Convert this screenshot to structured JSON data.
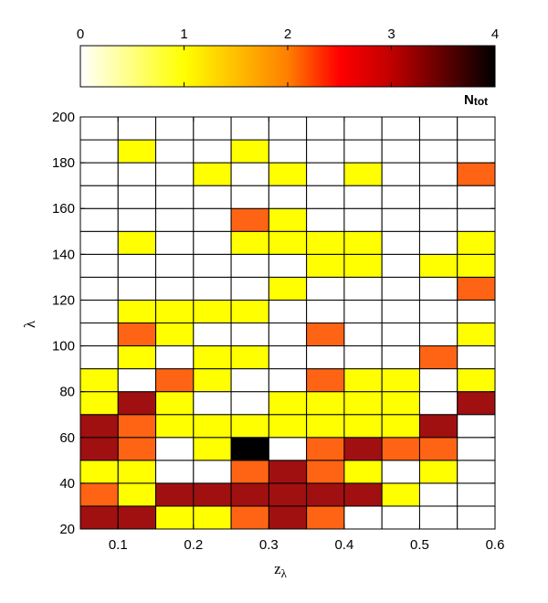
{
  "chart_data": {
    "type": "heatmap",
    "title": "",
    "xlabel_main": "z",
    "xlabel_sub": "λ",
    "ylabel": "λ",
    "x_edges": [
      0.05,
      0.1,
      0.15,
      0.2,
      0.25,
      0.3,
      0.35,
      0.4,
      0.45,
      0.5,
      0.55,
      0.6
    ],
    "y_edges": [
      20,
      30,
      40,
      50,
      60,
      70,
      80,
      90,
      100,
      110,
      120,
      130,
      140,
      150,
      160,
      170,
      180,
      190,
      200
    ],
    "xlim": [
      0.05,
      0.6
    ],
    "ylim": [
      20,
      200
    ],
    "x_ticks": [
      "0.1",
      "0.2",
      "0.3",
      "0.4",
      "0.5",
      "0.6"
    ],
    "x_tick_values": [
      0.1,
      0.2,
      0.3,
      0.4,
      0.5,
      0.6
    ],
    "y_ticks": [
      "20",
      "40",
      "60",
      "80",
      "100",
      "120",
      "140",
      "160",
      "180",
      "200"
    ],
    "y_tick_values": [
      20,
      40,
      60,
      80,
      100,
      120,
      140,
      160,
      180,
      200
    ],
    "grid": true,
    "colorbar": {
      "label_main": "N",
      "label_sub": "tot",
      "range": [
        0,
        4
      ],
      "ticks": [
        "0",
        "1",
        "2",
        "3",
        "4"
      ],
      "tick_values": [
        0,
        1,
        2,
        3,
        4
      ],
      "colormap": "hot-reversed",
      "placement": "top"
    },
    "values": [
      [
        3,
        3,
        1,
        1,
        2,
        3,
        2,
        0,
        0,
        0,
        0
      ],
      [
        2,
        1,
        3,
        3,
        3,
        3,
        3,
        3,
        1,
        0,
        0
      ],
      [
        1,
        1,
        0,
        0,
        2,
        3,
        2,
        1,
        0,
        1,
        0
      ],
      [
        3,
        2,
        0,
        1,
        4,
        0,
        2,
        3,
        2,
        2,
        0
      ],
      [
        3,
        2,
        1,
        1,
        1,
        1,
        1,
        1,
        1,
        3,
        0
      ],
      [
        1,
        3,
        1,
        0,
        0,
        1,
        1,
        1,
        1,
        0,
        3
      ],
      [
        1,
        0,
        2,
        1,
        0,
        0,
        2,
        1,
        1,
        0,
        1
      ],
      [
        0,
        1,
        0,
        1,
        1,
        0,
        0,
        0,
        0,
        2,
        0
      ],
      [
        0,
        2,
        1,
        0,
        0,
        0,
        2,
        0,
        0,
        0,
        1
      ],
      [
        0,
        1,
        1,
        1,
        1,
        0,
        0,
        0,
        0,
        0,
        0
      ],
      [
        0,
        0,
        0,
        0,
        0,
        1,
        0,
        0,
        0,
        0,
        2
      ],
      [
        0,
        0,
        0,
        0,
        0,
        0,
        1,
        1,
        0,
        1,
        1
      ],
      [
        0,
        1,
        0,
        0,
        1,
        1,
        1,
        1,
        0,
        0,
        1
      ],
      [
        0,
        0,
        0,
        0,
        2,
        1,
        0,
        0,
        0,
        0,
        0
      ],
      [
        0,
        0,
        0,
        0,
        0,
        0,
        0,
        0,
        0,
        0,
        0
      ],
      [
        0,
        0,
        0,
        1,
        0,
        1,
        0,
        1,
        0,
        0,
        2
      ],
      [
        0,
        1,
        0,
        0,
        1,
        0,
        0,
        0,
        0,
        0,
        0
      ],
      [
        0,
        0,
        0,
        0,
        0,
        0,
        0,
        0,
        0,
        0,
        0
      ]
    ],
    "colors": {
      "0": "#ffffff",
      "1": "#ffff00",
      "2": "#ff6414",
      "3": "#a01010",
      "4": "#000000"
    }
  }
}
